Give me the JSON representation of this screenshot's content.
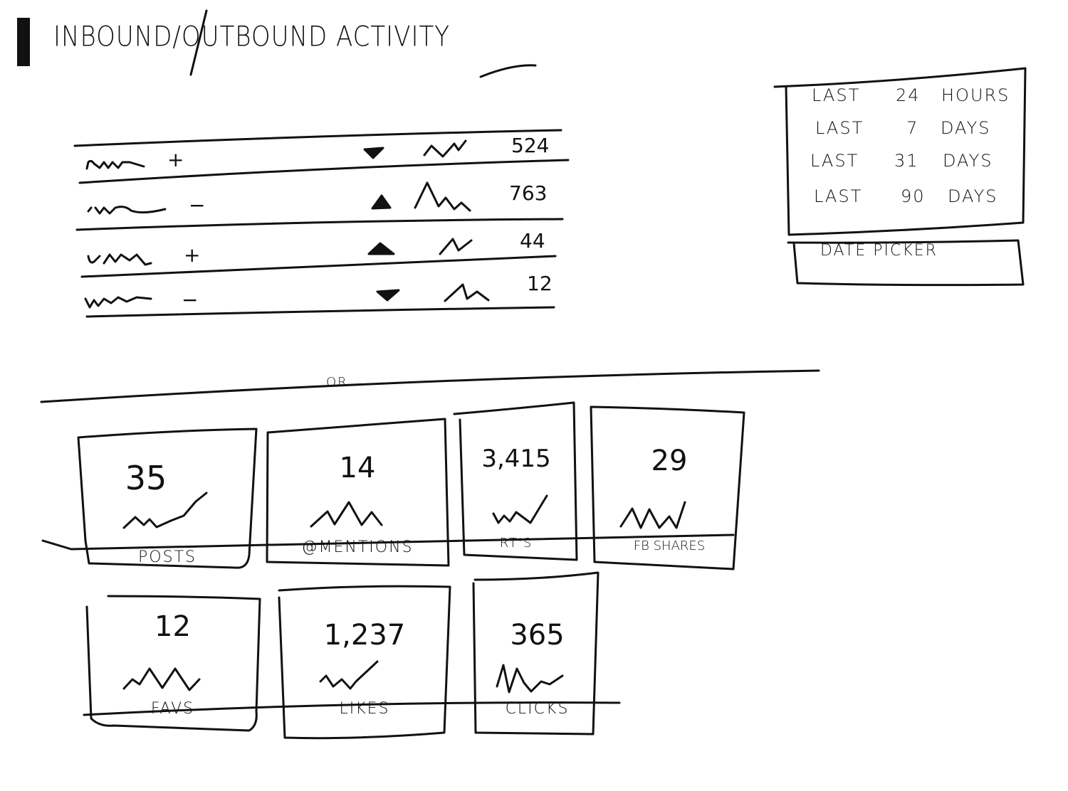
{
  "header": {
    "title": "INBOUND/OUTBOUND ACTIVITY"
  },
  "table": {
    "rows": [
      {
        "sign": "+",
        "trend": "down",
        "value": "524"
      },
      {
        "sign": "−",
        "trend": "up",
        "value": "763"
      },
      {
        "sign": "+",
        "trend": "up",
        "value": "44"
      },
      {
        "sign": "−",
        "trend": "down",
        "value": "12"
      }
    ]
  },
  "date_range": {
    "options": [
      {
        "w1": "LAST",
        "w2": "24",
        "w3": "HOURS"
      },
      {
        "w1": "LAST",
        "w2": "7",
        "w3": "DAYS"
      },
      {
        "w1": "LAST",
        "w2": "31",
        "w3": "DAYS"
      },
      {
        "w1": "LAST",
        "w2": "90",
        "w3": "DAYS"
      }
    ],
    "date_picker_label": "DATE PICKER"
  },
  "divider": {
    "label": "OR"
  },
  "cards": [
    {
      "value": "35",
      "label": "POSTS"
    },
    {
      "value": "14",
      "label": "@MENTIONS"
    },
    {
      "value": "3,415",
      "label": "RT'S"
    },
    {
      "value": "29",
      "label": "FB SHARES"
    },
    {
      "value": "12",
      "label": "FAVS"
    },
    {
      "value": "1,237",
      "label": "LIKES"
    },
    {
      "value": "365",
      "label": "CLICKS"
    }
  ]
}
